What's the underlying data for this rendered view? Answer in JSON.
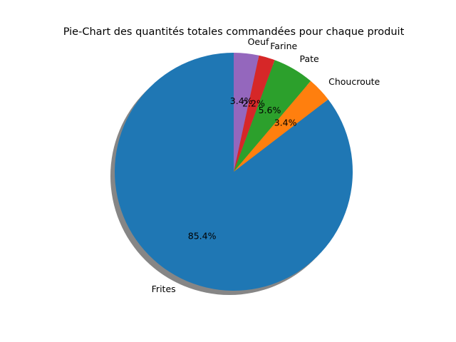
{
  "chart_data": {
    "type": "pie",
    "title": "Pie-Chart des quantités totales commandées pour chaque produit",
    "shadow": true,
    "start_angle_deg": 90,
    "direction": "counterclockwise",
    "slices": [
      {
        "label": "Frites",
        "value": 85.4,
        "pct_label": "85.4%",
        "color": "#1f77b4"
      },
      {
        "label": "Choucroute",
        "value": 3.4,
        "pct_label": "3.4%",
        "color": "#ff7f0e"
      },
      {
        "label": "Pate",
        "value": 5.6,
        "pct_label": "5.6%",
        "color": "#2ca02c"
      },
      {
        "label": "Farine",
        "value": 2.2,
        "pct_label": "2.2%",
        "color": "#d62728"
      },
      {
        "label": "Oeuf",
        "value": 3.4,
        "pct_label": "3.4%",
        "color": "#9467bd"
      }
    ]
  }
}
